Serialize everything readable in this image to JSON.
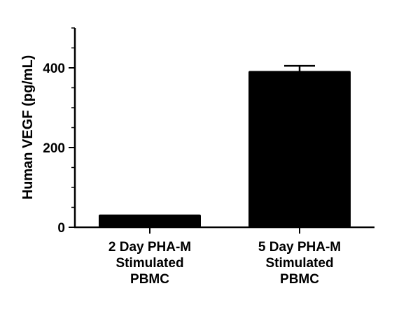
{
  "chart_data": {
    "type": "bar",
    "categories": [
      [
        "2 Day PHA-M",
        "Stimulated",
        "PBMC"
      ],
      [
        "5 Day PHA-M",
        "Stimulated",
        "PBMC"
      ]
    ],
    "values": [
      32,
      392
    ],
    "errors": [
      0,
      13
    ],
    "title": "",
    "xlabel": "",
    "ylabel": "Human VEGF (pg/mL)",
    "ylim": [
      0,
      500
    ],
    "yticks": [
      0,
      200,
      400
    ],
    "yminor_step": 50,
    "grid": false,
    "colors": {
      "bar": "#000000",
      "axis": "#000000"
    }
  }
}
